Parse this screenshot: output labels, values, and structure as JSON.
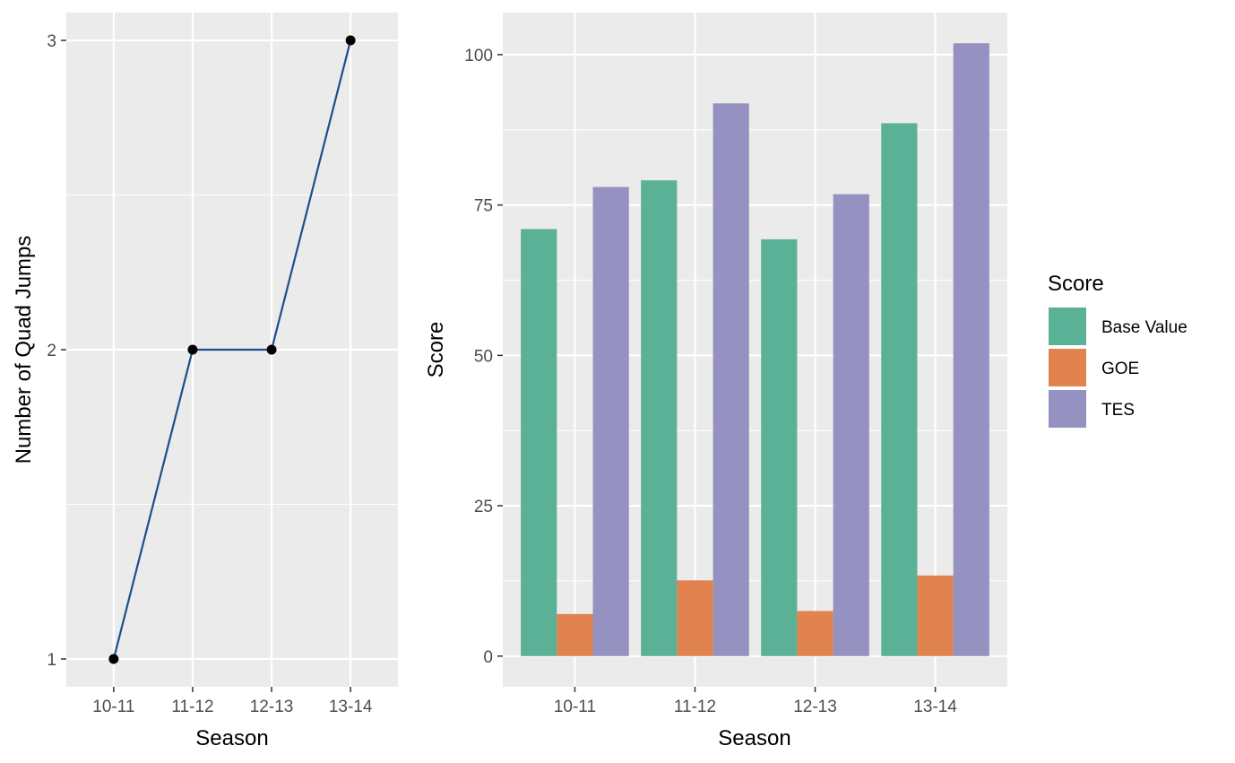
{
  "chart_data": [
    {
      "type": "line",
      "xlabel": "Season",
      "ylabel": "Number of Quad Jumps",
      "categories": [
        "10-11",
        "11-12",
        "12-13",
        "13-14"
      ],
      "values": [
        1,
        2,
        2,
        3
      ],
      "ylim": [
        0.91,
        3.09
      ],
      "yticks": [
        1,
        2,
        3
      ],
      "grid": true,
      "line_color": "#1f4e8c",
      "point_color": "#000000"
    },
    {
      "type": "bar",
      "xlabel": "Season",
      "ylabel": "Score",
      "categories": [
        "10-11",
        "11-12",
        "12-13",
        "13-14"
      ],
      "series": [
        {
          "name": "Base Value",
          "values": [
            71.0,
            79.1,
            69.3,
            88.6
          ],
          "color": "#5bb196"
        },
        {
          "name": "GOE",
          "values": [
            7.0,
            12.6,
            7.5,
            13.4
          ],
          "color": "#e0834e"
        },
        {
          "name": "TES",
          "values": [
            78.0,
            91.9,
            76.8,
            101.9
          ],
          "color": "#9592c1"
        }
      ],
      "ylim": [
        -5.1,
        107.0
      ],
      "yticks": [
        0,
        25,
        50,
        75,
        100
      ],
      "grid": true,
      "legend": {
        "title": "Score",
        "position": "right"
      }
    }
  ]
}
